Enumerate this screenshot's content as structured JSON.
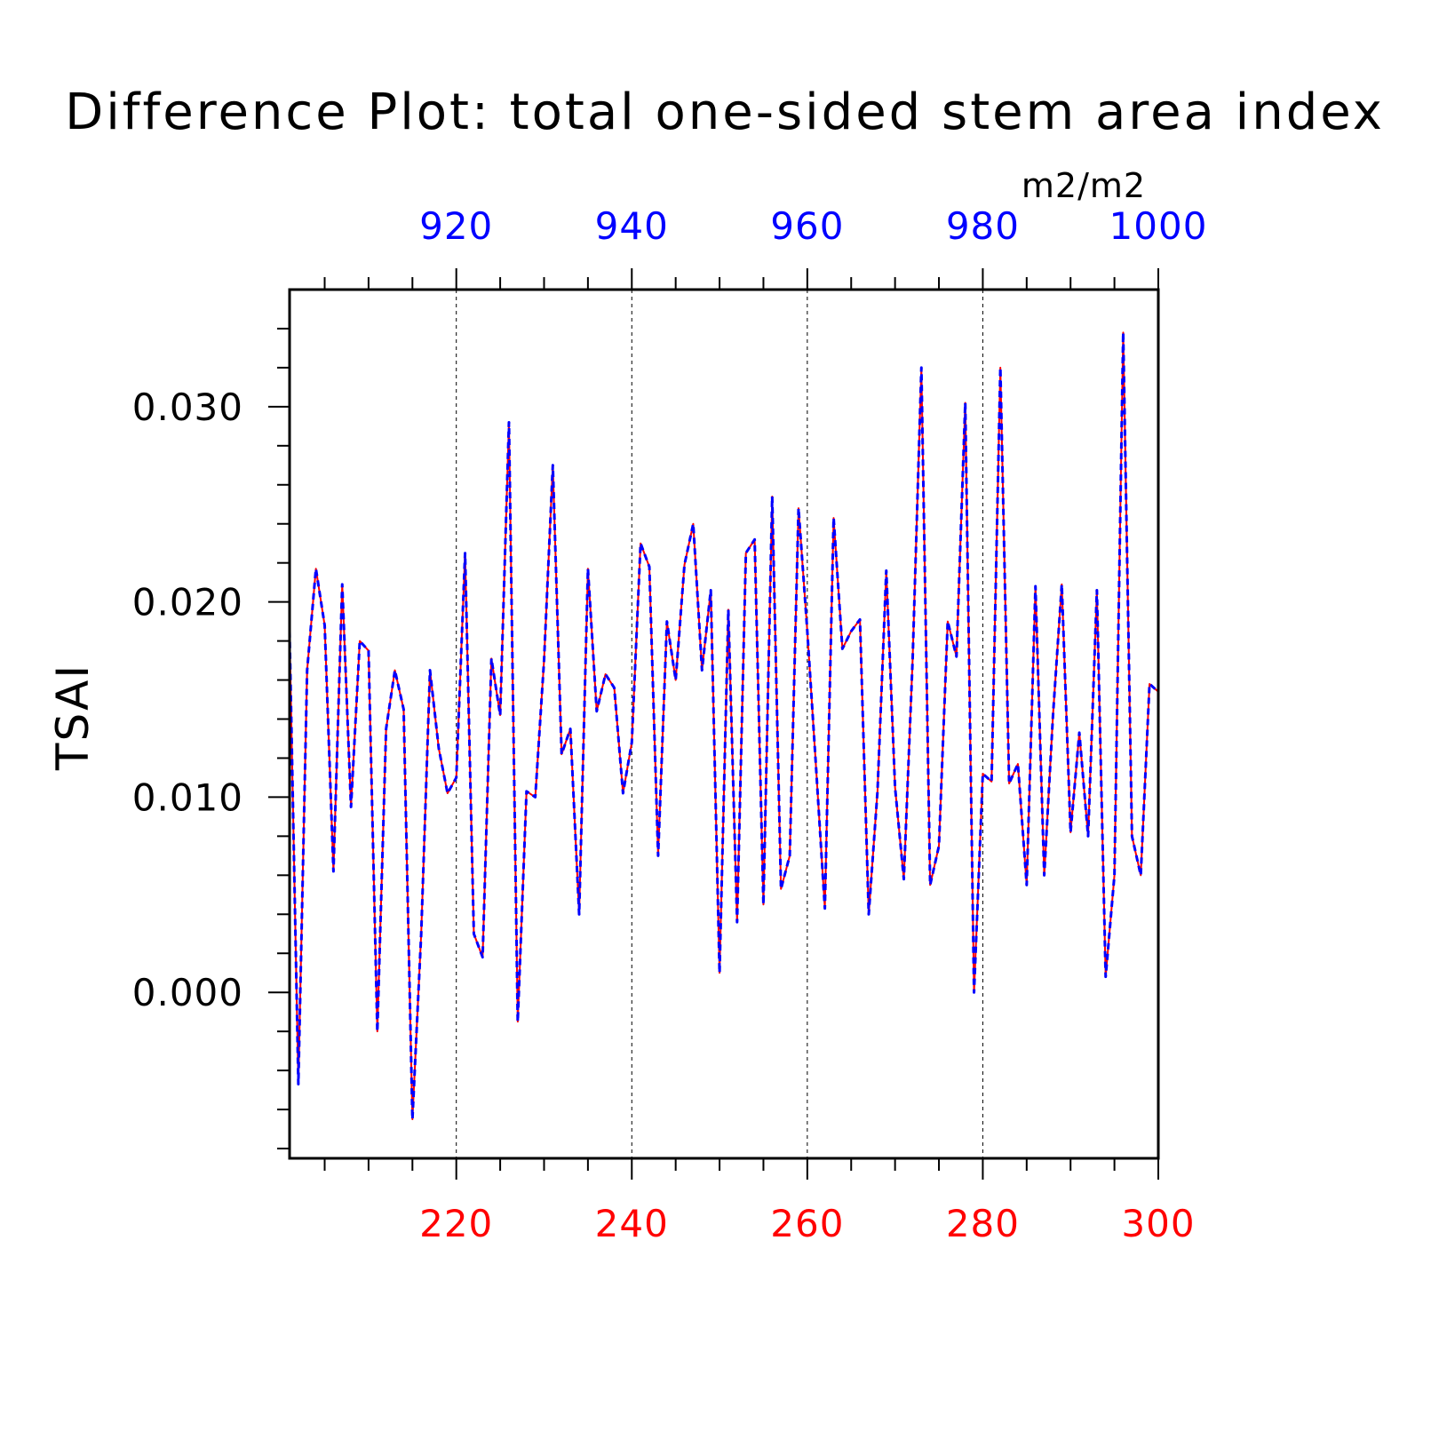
{
  "chart_data": {
    "type": "line",
    "title": "Difference Plot: total one-sided stem area index",
    "units": "m2/m2",
    "ylabel": "TSAI",
    "ylim": [
      -0.0085,
      0.036
    ],
    "y_ticks": [
      "0.000",
      "0.010",
      "0.020",
      "0.030"
    ],
    "x_bottom": {
      "range": [
        201,
        300
      ],
      "ticks": [
        "220",
        "240",
        "260",
        "280",
        "300"
      ],
      "color": "#ff0000"
    },
    "x_top": {
      "range": [
        901,
        1000
      ],
      "ticks": [
        "920",
        "940",
        "960",
        "980",
        "1000"
      ],
      "color": "#0000ff"
    },
    "grid": "dashed vertical lines at major x ticks",
    "series": [
      {
        "color": "#ff0000",
        "style": "solid",
        "x": [
          201,
          202,
          203,
          204,
          205,
          206,
          207,
          208,
          209,
          210,
          211,
          212,
          213,
          214,
          215,
          216,
          217,
          218,
          219,
          220,
          221,
          222,
          223,
          224,
          225,
          226,
          227,
          228,
          229,
          230,
          231,
          232,
          233,
          234,
          235,
          236,
          237,
          238,
          239,
          240,
          241,
          242,
          243,
          244,
          245,
          246,
          247,
          248,
          249,
          250,
          251,
          252,
          253,
          254,
          255,
          256,
          257,
          258,
          259,
          260,
          261,
          262,
          263,
          264,
          265,
          266,
          267,
          268,
          269,
          270,
          271,
          272,
          273,
          274,
          275,
          276,
          277,
          278,
          279,
          280,
          281,
          282,
          283,
          284,
          285,
          286,
          287,
          288,
          289,
          290,
          291,
          292,
          293,
          294,
          295,
          296,
          297,
          298,
          299,
          300
        ],
        "y": [
          0.0185,
          -0.0047,
          0.0165,
          0.0217,
          0.0188,
          0.0062,
          0.0209,
          0.0095,
          0.018,
          0.0175,
          -0.002,
          0.0135,
          0.0165,
          0.0145,
          -0.0065,
          0.003,
          0.0165,
          0.0125,
          0.0102,
          0.011,
          0.0225,
          0.003,
          0.0018,
          0.0171,
          0.0142,
          0.0292,
          -0.0015,
          0.0103,
          0.01,
          0.017,
          0.027,
          0.0122,
          0.0135,
          0.004,
          0.0217,
          0.0144,
          0.0163,
          0.0156,
          0.0102,
          0.0128,
          0.023,
          0.0218,
          0.007,
          0.019,
          0.016,
          0.0219,
          0.024,
          0.0165,
          0.0206,
          0.001,
          0.0196,
          0.0036,
          0.0225,
          0.0232,
          0.0045,
          0.0254,
          0.0053,
          0.007,
          0.0248,
          0.0185,
          0.0115,
          0.0043,
          0.0243,
          0.0176,
          0.0185,
          0.0191,
          0.004,
          0.0103,
          0.0216,
          0.0105,
          0.0058,
          0.017,
          0.032,
          0.0055,
          0.0075,
          0.019,
          0.0172,
          0.0302,
          0.0,
          0.0112,
          0.0108,
          0.032,
          0.0107,
          0.0117,
          0.0055,
          0.0208,
          0.006,
          0.0142,
          0.0209,
          0.0082,
          0.0133,
          0.008,
          0.0206,
          0.0008,
          0.006,
          0.0338,
          0.008,
          0.006,
          0.0158,
          0.0154
        ]
      },
      {
        "color": "#0000ff",
        "style": "dashed",
        "x": [
          901,
          902,
          903,
          904,
          905,
          906,
          907,
          908,
          909,
          910,
          911,
          912,
          913,
          914,
          915,
          916,
          917,
          918,
          919,
          920,
          921,
          922,
          923,
          924,
          925,
          926,
          927,
          928,
          929,
          930,
          931,
          932,
          933,
          934,
          935,
          936,
          937,
          938,
          939,
          940,
          941,
          942,
          943,
          944,
          945,
          946,
          947,
          948,
          949,
          950,
          951,
          952,
          953,
          954,
          955,
          956,
          957,
          958,
          959,
          960,
          961,
          962,
          963,
          964,
          965,
          966,
          967,
          968,
          969,
          970,
          971,
          972,
          973,
          974,
          975,
          976,
          977,
          978,
          979,
          980,
          981,
          982,
          983,
          984,
          985,
          986,
          987,
          988,
          989,
          990,
          991,
          992,
          993,
          994,
          995,
          996,
          997,
          998,
          999,
          1000
        ],
        "y": [
          0.0185,
          -0.0047,
          0.0165,
          0.0217,
          0.0188,
          0.0062,
          0.0209,
          0.0095,
          0.018,
          0.0175,
          -0.002,
          0.0135,
          0.0165,
          0.0145,
          -0.0065,
          0.003,
          0.0165,
          0.0125,
          0.0102,
          0.011,
          0.0225,
          0.003,
          0.0018,
          0.0171,
          0.0142,
          0.0292,
          -0.0015,
          0.0103,
          0.01,
          0.017,
          0.027,
          0.0122,
          0.0135,
          0.004,
          0.0217,
          0.0144,
          0.0163,
          0.0156,
          0.0102,
          0.0128,
          0.023,
          0.0218,
          0.007,
          0.019,
          0.016,
          0.0219,
          0.024,
          0.0165,
          0.0206,
          0.001,
          0.0196,
          0.0036,
          0.0225,
          0.0232,
          0.0045,
          0.0254,
          0.0053,
          0.007,
          0.0248,
          0.0185,
          0.0115,
          0.0043,
          0.0243,
          0.0176,
          0.0185,
          0.0191,
          0.004,
          0.0103,
          0.0216,
          0.0105,
          0.0058,
          0.017,
          0.032,
          0.0055,
          0.0075,
          0.019,
          0.0172,
          0.0302,
          0.0,
          0.0112,
          0.0108,
          0.032,
          0.0107,
          0.0117,
          0.0055,
          0.0208,
          0.006,
          0.0142,
          0.0209,
          0.0082,
          0.0133,
          0.008,
          0.0206,
          0.0008,
          0.006,
          0.0338,
          0.008,
          0.006,
          0.0158,
          0.0154
        ]
      }
    ]
  }
}
